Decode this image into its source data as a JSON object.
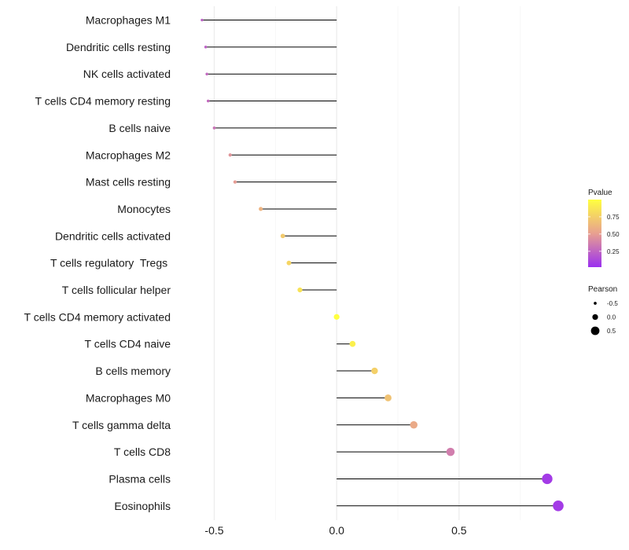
{
  "chart_data": {
    "type": "lollipop",
    "categories": [
      "Macrophages M1",
      "Dendritic cells resting",
      "NK cells activated",
      "T cells CD4 memory resting",
      "B cells naive",
      "Macrophages M2",
      "Mast cells resting",
      "Monocytes",
      "Dendritic cells activated",
      "T cells regulatory  Tregs ",
      "T cells follicular helper",
      "T cells CD4 memory activated",
      "T cells CD4 naive",
      "B cells memory",
      "Macrophages M0",
      "T cells gamma delta",
      "T cells CD8",
      "Plasma cells",
      "Eosinophils"
    ],
    "values": [
      -0.55,
      -0.535,
      -0.53,
      -0.525,
      -0.5,
      -0.435,
      -0.415,
      -0.31,
      -0.22,
      -0.195,
      -0.15,
      0.0,
      0.065,
      0.155,
      0.21,
      0.315,
      0.465,
      0.86,
      0.905
    ],
    "pvalues": [
      0.22,
      0.22,
      0.25,
      0.26,
      0.3,
      0.45,
      0.48,
      0.6,
      0.72,
      0.78,
      0.85,
      1.0,
      0.92,
      0.75,
      0.68,
      0.55,
      0.35,
      0.05,
      0.05
    ],
    "xlim": [
      -0.63,
      0.95
    ],
    "xticks": [
      -0.5,
      0.0,
      0.5
    ],
    "xtick_labels": [
      "-0.5",
      "0.0",
      "0.5"
    ],
    "xlabel": "",
    "ylabel": "",
    "grid": true,
    "color_legend": {
      "title": "Pvalue",
      "ticks": [
        0.75,
        0.5,
        0.25
      ],
      "tick_labels": [
        "0.75",
        "0.50",
        "0.25"
      ],
      "low_color": "#9b30f0",
      "mid_color": "#e8a090",
      "high_color": "#ffff40"
    },
    "size_legend": {
      "title": "Pearson",
      "values": [
        -0.5,
        0.0,
        0.5
      ],
      "labels": [
        "-0.5",
        "0.0",
        "0.5"
      ]
    },
    "legend_position": "right"
  }
}
